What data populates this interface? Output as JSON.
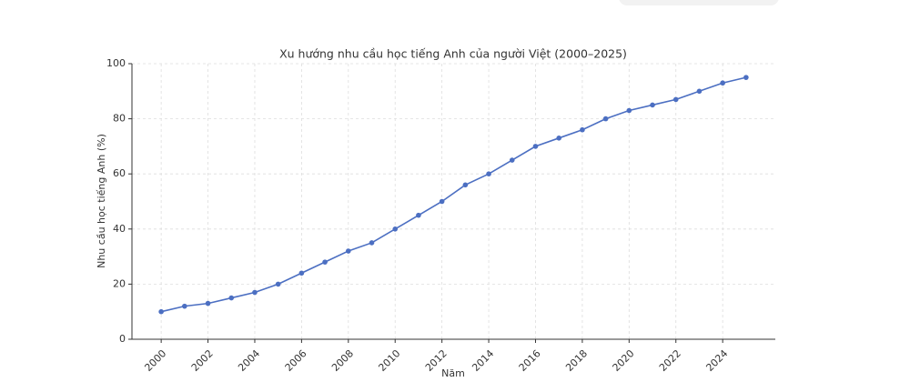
{
  "chart_data": {
    "type": "line",
    "title": "Xu hướng nhu cầu học tiếng Anh của người Việt (2000–2025)",
    "x_label": "Năm",
    "y_label": "Nhu cầu học tiếng Anh (%)",
    "x": [
      2000,
      2001,
      2002,
      2003,
      2004,
      2005,
      2006,
      2007,
      2008,
      2009,
      2010,
      2011,
      2012,
      2013,
      2014,
      2015,
      2016,
      2017,
      2018,
      2019,
      2020,
      2021,
      2022,
      2023,
      2024,
      2025
    ],
    "series": [
      {
        "name": "Nhu cầu học tiếng Anh",
        "color": "#4c6fc2",
        "values": [
          10,
          12,
          13,
          15,
          17,
          20,
          24,
          28,
          32,
          35,
          40,
          45,
          50,
          56,
          60,
          65,
          70,
          73,
          76,
          80,
          83,
          85,
          87,
          90,
          93,
          95
        ]
      }
    ],
    "xlim": [
      1998.75,
      2026.25
    ],
    "xticks": [
      2000,
      2002,
      2004,
      2006,
      2008,
      2010,
      2012,
      2014,
      2016,
      2018,
      2020,
      2022,
      2024
    ],
    "ylim": [
      0,
      100
    ],
    "yticks": [
      0,
      20,
      40,
      60,
      80,
      100
    ],
    "grid": true
  }
}
